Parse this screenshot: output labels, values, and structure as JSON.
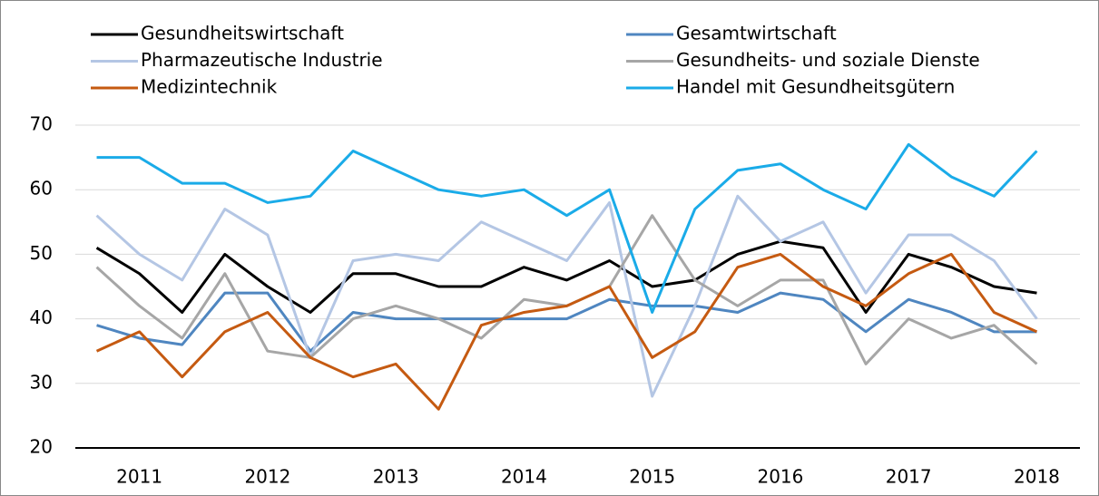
{
  "chart_data": {
    "type": "line",
    "categories": [
      null,
      "2011",
      null,
      null,
      "2012",
      null,
      null,
      "2013",
      null,
      null,
      "2014",
      null,
      null,
      "2015",
      null,
      null,
      "2016",
      null,
      null,
      "2017",
      null,
      null,
      "2018"
    ],
    "series": [
      {
        "name": "Gesundheitswirtschaft",
        "color": "#000000",
        "values": [
          51,
          47,
          41,
          50,
          45,
          41,
          47,
          47,
          45,
          45,
          48,
          46,
          49,
          45,
          46,
          50,
          52,
          51,
          41,
          50,
          48,
          45,
          44
        ]
      },
      {
        "name": "Gesamtwirtschaft",
        "color": "#4f86c0",
        "values": [
          39,
          37,
          36,
          44,
          44,
          35,
          41,
          40,
          40,
          40,
          40,
          40,
          43,
          42,
          42,
          41,
          44,
          43,
          38,
          43,
          41,
          38,
          38
        ]
      },
      {
        "name": "Pharmazeutische Industrie",
        "color": "#b4c6e4",
        "values": [
          56,
          50,
          46,
          57,
          53,
          34,
          49,
          50,
          49,
          55,
          52,
          49,
          58,
          28,
          42,
          59,
          52,
          55,
          44,
          53,
          53,
          49,
          40
        ]
      },
      {
        "name": "Gesundheits- und soziale Dienste",
        "color": "#a6a6a6",
        "values": [
          48,
          42,
          37,
          47,
          35,
          34,
          40,
          42,
          40,
          37,
          43,
          42,
          45,
          56,
          46,
          42,
          46,
          46,
          33,
          40,
          37,
          39,
          33
        ]
      },
      {
        "name": "Medizintechnik",
        "color": "#c55a11",
        "values": [
          35,
          38,
          31,
          38,
          41,
          34,
          31,
          33,
          26,
          39,
          41,
          42,
          45,
          34,
          38,
          48,
          50,
          45,
          42,
          47,
          50,
          41,
          38
        ]
      },
      {
        "name": "Handel mit Gesundheitsgütern",
        "color": "#1aabe8",
        "values": [
          65,
          65,
          61,
          61,
          58,
          59,
          66,
          63,
          60,
          59,
          60,
          56,
          60,
          41,
          57,
          63,
          64,
          60,
          57,
          67,
          62,
          59,
          66
        ]
      }
    ],
    "ylim": [
      20,
      70
    ],
    "yticks": [
      20,
      30,
      40,
      50,
      60,
      70
    ],
    "grid": true,
    "legend": "top"
  }
}
